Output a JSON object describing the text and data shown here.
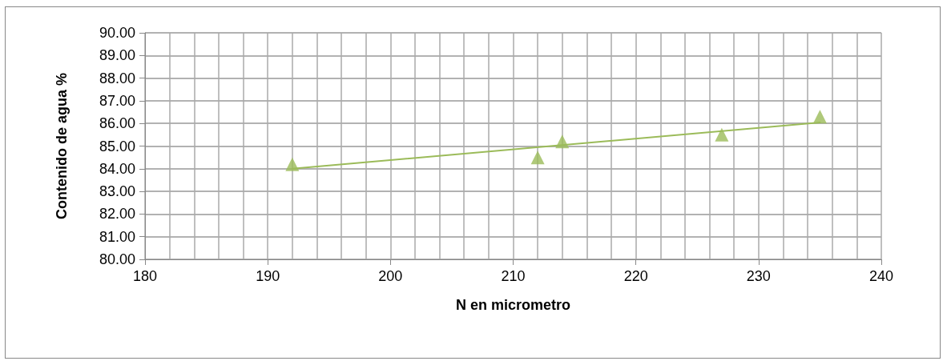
{
  "chart_data": {
    "type": "scatter",
    "xlabel": "N en micrometro",
    "ylabel": "Contenido de agua %",
    "series": [
      {
        "color": "#9bbb59",
        "marker": "triangle",
        "x": [
          192,
          212,
          214,
          227,
          235
        ],
        "values": [
          84.2,
          84.5,
          85.2,
          85.5,
          86.3
        ]
      },
      {
        "type": "line",
        "color": "#9bbb59",
        "marker": "none",
        "line_style": "solid",
        "x": [
          192,
          235
        ],
        "values": [
          84.0,
          86.04
        ]
      }
    ],
    "xlim": [
      180,
      240
    ],
    "xticks": [
      180,
      190,
      200,
      210,
      220,
      230,
      240
    ],
    "ylim": [
      80,
      90
    ],
    "yticks": [
      {
        "value": 80,
        "label": "80.00"
      },
      {
        "value": 81,
        "label": "81.00"
      },
      {
        "value": 82,
        "label": "82.00"
      },
      {
        "value": 83,
        "label": "83.00"
      },
      {
        "value": 84,
        "label": "84.00"
      },
      {
        "value": 85,
        "label": "85.00"
      },
      {
        "value": 86,
        "label": "86.00"
      },
      {
        "value": 87,
        "label": "87.00"
      },
      {
        "value": 88,
        "label": "88.00"
      },
      {
        "value": 89,
        "label": "89.00"
      },
      {
        "value": 90,
        "label": "90.00"
      }
    ],
    "grid": true
  }
}
